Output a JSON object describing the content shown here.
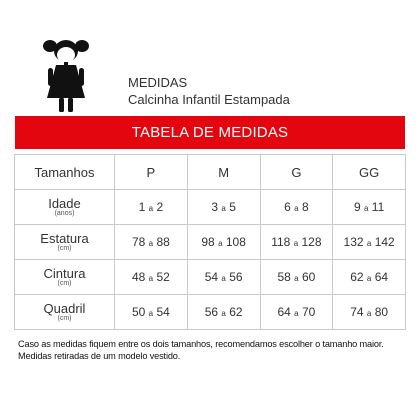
{
  "header": {
    "title": "MEDIDAS",
    "product": "Calcinha Infantil Estampada",
    "icon": "girl-icon"
  },
  "banner": {
    "label": "TABELA DE MEDIDAS",
    "color": "#e3060f"
  },
  "table": {
    "header_label": "Tamanhos",
    "sizes": [
      "P",
      "M",
      "G",
      "GG"
    ],
    "rows": [
      {
        "label": "Idade",
        "unit": "(anos)",
        "values": [
          {
            "from": "1",
            "sep": "a",
            "to": "2"
          },
          {
            "from": "3",
            "sep": "a",
            "to": "5"
          },
          {
            "from": "6",
            "sep": "a",
            "to": "8"
          },
          {
            "from": "9",
            "sep": "a",
            "to": "11"
          }
        ]
      },
      {
        "label": "Estatura",
        "unit": "(cm)",
        "values": [
          {
            "from": "78",
            "sep": "a",
            "to": "88"
          },
          {
            "from": "98",
            "sep": "a",
            "to": "108"
          },
          {
            "from": "118",
            "sep": "a",
            "to": "128"
          },
          {
            "from": "132",
            "sep": "a",
            "to": "142"
          }
        ]
      },
      {
        "label": "Cintura",
        "unit": "(cm)",
        "values": [
          {
            "from": "48",
            "sep": "a",
            "to": "52"
          },
          {
            "from": "54",
            "sep": "a",
            "to": "56"
          },
          {
            "from": "58",
            "sep": "a",
            "to": "60"
          },
          {
            "from": "62",
            "sep": "a",
            "to": "64"
          }
        ]
      },
      {
        "label": "Quadril",
        "unit": "(cm)",
        "values": [
          {
            "from": "50",
            "sep": "a",
            "to": "54"
          },
          {
            "from": "56",
            "sep": "a",
            "to": "62"
          },
          {
            "from": "64",
            "sep": "a",
            "to": "70"
          },
          {
            "from": "74",
            "sep": "a",
            "to": "80"
          }
        ]
      }
    ]
  },
  "note": {
    "line1": "Caso as medidas fiquem entre os dois tamanhos, recomendamos escolher o tamanho maior.",
    "line2": "Medidas retiradas de um modelo vestido."
  }
}
